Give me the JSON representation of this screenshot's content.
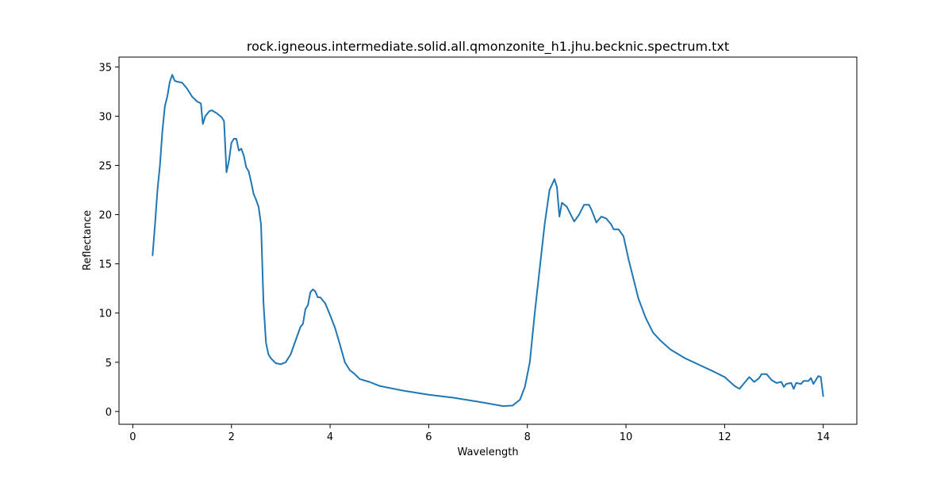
{
  "chart_data": {
    "type": "line",
    "title": "rock.igneous.intermediate.solid.all.qmonzonite_h1.jhu.becknic.spectrum.txt",
    "x_label": "Wavelength",
    "y_label": "Reflectance",
    "color": "#1f77b4",
    "x": [
      0.4,
      0.45,
      0.5,
      0.55,
      0.6,
      0.65,
      0.7,
      0.75,
      0.8,
      0.85,
      0.9,
      1.0,
      1.1,
      1.2,
      1.3,
      1.38,
      1.42,
      1.47,
      1.55,
      1.6,
      1.7,
      1.8,
      1.85,
      1.9,
      1.95,
      2.0,
      2.05,
      2.1,
      2.15,
      2.2,
      2.25,
      2.3,
      2.35,
      2.4,
      2.45,
      2.5,
      2.55,
      2.6,
      2.65,
      2.7,
      2.75,
      2.8,
      2.9,
      3.0,
      3.1,
      3.2,
      3.3,
      3.4,
      3.45,
      3.5,
      3.55,
      3.6,
      3.65,
      3.7,
      3.75,
      3.8,
      3.9,
      4.0,
      4.1,
      4.2,
      4.3,
      4.4,
      4.5,
      4.6,
      4.8,
      5.0,
      5.5,
      6.0,
      6.5,
      7.0,
      7.5,
      7.7,
      7.85,
      7.95,
      8.05,
      8.15,
      8.25,
      8.35,
      8.45,
      8.55,
      8.6,
      8.65,
      8.7,
      8.8,
      8.9,
      8.95,
      9.05,
      9.15,
      9.25,
      9.3,
      9.4,
      9.5,
      9.6,
      9.7,
      9.75,
      9.85,
      9.95,
      10.05,
      10.15,
      10.25,
      10.4,
      10.55,
      10.7,
      10.9,
      11.2,
      11.5,
      11.8,
      12.0,
      12.2,
      12.3,
      12.4,
      12.5,
      12.6,
      12.7,
      12.75,
      12.85,
      12.95,
      13.05,
      13.15,
      13.2,
      13.25,
      13.35,
      13.4,
      13.45,
      13.55,
      13.6,
      13.7,
      13.75,
      13.8,
      13.9,
      13.95,
      14.0
    ],
    "values": [
      15.8,
      19,
      22.5,
      25,
      28.5,
      31,
      32,
      33.5,
      34.2,
      33.6,
      33.5,
      33.4,
      32.8,
      32,
      31.5,
      31.3,
      29.2,
      30,
      30.5,
      30.6,
      30.3,
      29.9,
      29.5,
      24.3,
      25.5,
      27.3,
      27.7,
      27.7,
      26.5,
      26.7,
      26,
      24.8,
      24.4,
      23.3,
      22.1,
      21.5,
      20.8,
      19,
      11,
      7,
      5.8,
      5.4,
      4.9,
      4.8,
      5,
      5.8,
      7.2,
      8.6,
      8.9,
      10.4,
      10.8,
      12.1,
      12.4,
      12.2,
      11.6,
      11.6,
      11,
      9.8,
      8.5,
      6.8,
      5,
      4.2,
      3.8,
      3.3,
      3,
      2.6,
      2.1,
      1.7,
      1.4,
      1,
      0.55,
      0.6,
      1.2,
      2.5,
      5,
      10,
      14.5,
      19,
      22.5,
      23.6,
      22.8,
      19.8,
      21.2,
      20.8,
      19.8,
      19.3,
      20,
      21,
      21,
      20.5,
      19.2,
      19.8,
      19.6,
      19,
      18.5,
      18.5,
      17.8,
      15.5,
      13.5,
      11.5,
      9.5,
      8,
      7.2,
      6.3,
      5.4,
      4.7,
      4,
      3.5,
      2.6,
      2.3,
      2.9,
      3.5,
      3,
      3.4,
      3.8,
      3.8,
      3.2,
      2.9,
      3,
      2.5,
      2.8,
      2.9,
      2.3,
      2.9,
      2.8,
      3.1,
      3.1,
      3.4,
      2.8,
      3.6,
      3.5,
      1.5
    ],
    "xlim": [
      -0.28,
      14.68
    ],
    "ylim": [
      -1.3,
      36.0
    ],
    "xticks": [
      0,
      2,
      4,
      6,
      8,
      10,
      12,
      14
    ],
    "yticks": [
      0,
      5,
      10,
      15,
      20,
      25,
      30,
      35
    ]
  }
}
